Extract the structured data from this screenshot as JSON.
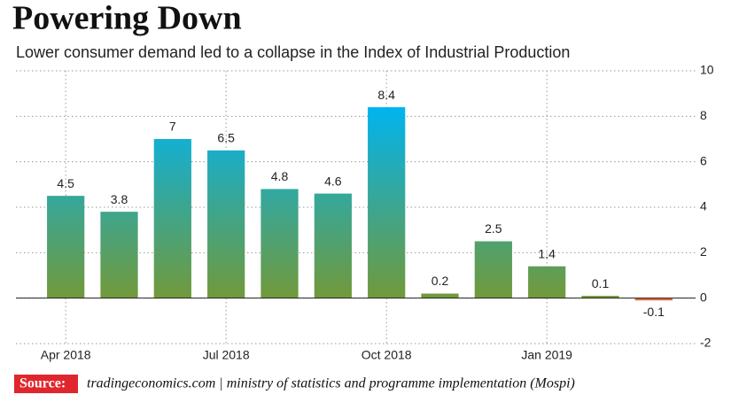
{
  "chart_data": {
    "type": "bar",
    "title": "Powering Down",
    "subtitle": "Lower consumer demand led to a collapse in the Index of Industrial Production",
    "categories": [
      "Apr 2018",
      null,
      null,
      "Jul 2018",
      null,
      null,
      "Oct 2018",
      null,
      null,
      "Jan 2019",
      null,
      null
    ],
    "values": [
      4.5,
      3.8,
      7,
      6.5,
      4.8,
      4.6,
      8.4,
      0.2,
      2.5,
      1.4,
      0.1,
      -0.1
    ],
    "color": [
      "#00b4f0",
      "#72993a"
    ],
    "negative_color": "#e2663a",
    "ylim": [
      -2,
      10
    ],
    "yticks": [
      -2,
      0,
      2,
      4,
      6,
      8,
      10
    ],
    "grid": true,
    "source_label": "Source:",
    "source": "tradingeconomics.com | ministry of statistics and programme implementation (Mospi)"
  }
}
